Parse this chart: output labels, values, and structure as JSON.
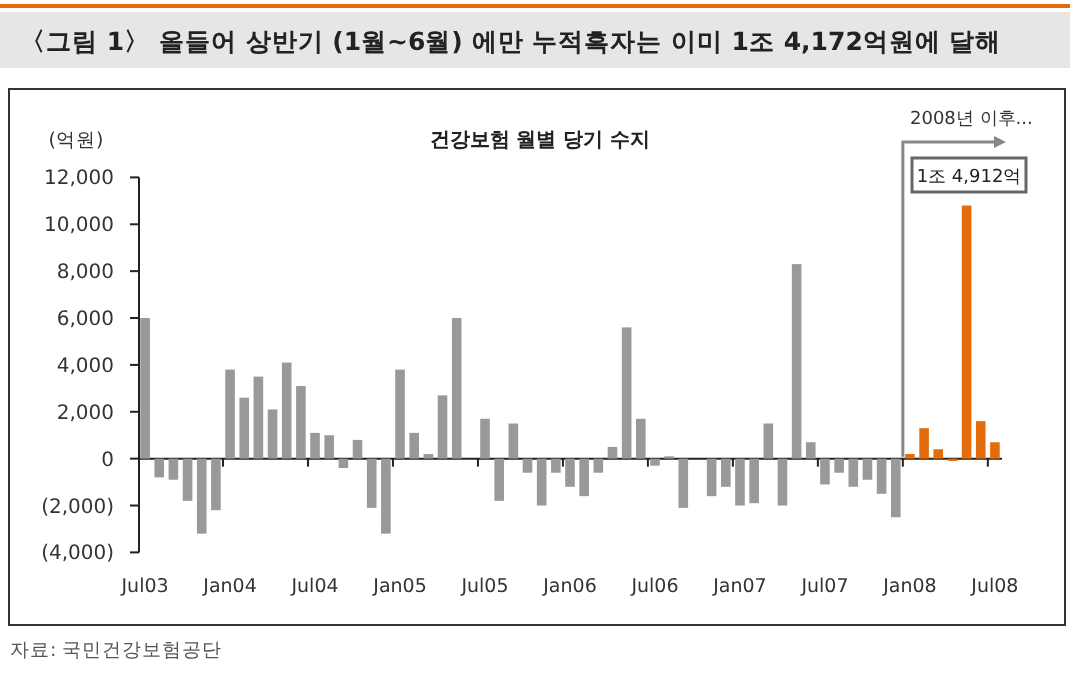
{
  "chart_data": {
    "type": "bar",
    "title": "〈그림 1〉 올들어 상반기 (1월~6월) 에만 누적흑자는 이미 1조 4,172억원에 달해",
    "subtitle": "건강보험 월별 당기 수지",
    "ylabel": "(억원)",
    "categories": [
      "Jul03",
      null,
      null,
      null,
      null,
      null,
      "Jan04",
      null,
      null,
      null,
      null,
      null,
      "Jul04",
      null,
      null,
      null,
      null,
      null,
      "Jan05",
      null,
      null,
      null,
      null,
      null,
      "Jul05",
      null,
      null,
      null,
      null,
      null,
      "Jan06",
      null,
      null,
      null,
      null,
      null,
      "Jul06",
      null,
      null,
      null,
      null,
      null,
      "Jan07",
      null,
      null,
      null,
      null,
      null,
      "Jul07",
      null,
      null,
      null,
      null,
      null,
      "Jan08",
      null,
      null,
      null,
      null,
      null,
      "Jul08"
    ],
    "values": [
      6000,
      -800,
      -900,
      -1800,
      -3200,
      -2200,
      3800,
      2600,
      3500,
      2100,
      4100,
      3100,
      1100,
      1000,
      -400,
      800,
      -2100,
      -3200,
      3800,
      1100,
      200,
      2700,
      6000,
      0,
      1700,
      -1800,
      1500,
      -600,
      -2000,
      -600,
      -1200,
      -1600,
      -600,
      500,
      5600,
      1700,
      -300,
      100,
      -2100,
      0,
      -1600,
      -1200,
      -2000,
      -1900,
      1500,
      -2000,
      8300,
      700,
      -1100,
      -600,
      -1200,
      -900,
      -1500,
      -2500,
      200,
      1300,
      400,
      -100,
      10800,
      1600,
      700
    ],
    "colors": [
      "#999999",
      "#999999",
      "#999999",
      "#999999",
      "#999999",
      "#999999",
      "#999999",
      "#999999",
      "#999999",
      "#999999",
      "#999999",
      "#999999",
      "#999999",
      "#999999",
      "#999999",
      "#999999",
      "#999999",
      "#999999",
      "#999999",
      "#999999",
      "#999999",
      "#999999",
      "#999999",
      "#999999",
      "#999999",
      "#999999",
      "#999999",
      "#999999",
      "#999999",
      "#999999",
      "#999999",
      "#999999",
      "#999999",
      "#999999",
      "#999999",
      "#999999",
      "#999999",
      "#999999",
      "#999999",
      "#999999",
      "#999999",
      "#999999",
      "#999999",
      "#999999",
      "#999999",
      "#999999",
      "#999999",
      "#999999",
      "#999999",
      "#999999",
      "#999999",
      "#999999",
      "#999999",
      "#999999",
      "#e46c0a",
      "#e46c0a",
      "#e46c0a",
      "#e46c0a",
      "#e46c0a",
      "#e46c0a",
      "#e46c0a"
    ],
    "ylim": [
      -4000,
      12000
    ],
    "yticks": [
      {
        "value": 12000,
        "label": "12,000"
      },
      {
        "value": 10000,
        "label": "10,000"
      },
      {
        "value": 8000,
        "label": "8,000"
      },
      {
        "value": 6000,
        "label": "6,000"
      },
      {
        "value": 4000,
        "label": "4,000"
      },
      {
        "value": 2000,
        "label": "2,000"
      },
      0,
      {
        "value": -2000,
        "label": "(2,000)"
      },
      {
        "value": -4000,
        "label": "(4,000)"
      }
    ],
    "annotations": [
      "2008년 이후...",
      "1조 4,912억",
      "자료: 국민건강보험공단"
    ]
  }
}
